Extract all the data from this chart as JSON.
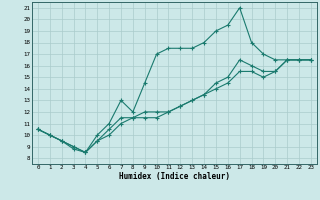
{
  "xlabel": "Humidex (Indice chaleur)",
  "bg_color": "#cce8e8",
  "grid_color": "#aacccc",
  "line_color": "#1a7a6e",
  "xlim": [
    -0.5,
    23.5
  ],
  "ylim": [
    7.5,
    21.5
  ],
  "xticks": [
    0,
    1,
    2,
    3,
    4,
    5,
    6,
    7,
    8,
    9,
    10,
    11,
    12,
    13,
    14,
    15,
    16,
    17,
    18,
    19,
    20,
    21,
    22,
    23
  ],
  "yticks": [
    8,
    9,
    10,
    11,
    12,
    13,
    14,
    15,
    16,
    17,
    18,
    19,
    20,
    21
  ],
  "line1_x": [
    0,
    1,
    2,
    3,
    4,
    5,
    6,
    7,
    8,
    9,
    10,
    11,
    12,
    13,
    14,
    15,
    16,
    17,
    18,
    19,
    20,
    21,
    22,
    23
  ],
  "line1_y": [
    10.5,
    10.0,
    9.5,
    9.0,
    8.5,
    10.0,
    11.0,
    13.0,
    12.0,
    14.5,
    17.0,
    17.5,
    17.5,
    17.5,
    18.0,
    19.0,
    19.5,
    21.0,
    18.0,
    17.0,
    16.5,
    16.5,
    16.5,
    16.5
  ],
  "line2_x": [
    0,
    1,
    2,
    3,
    4,
    5,
    6,
    7,
    8,
    9,
    10,
    11,
    12,
    13,
    14,
    15,
    16,
    17,
    18,
    19,
    20,
    21,
    22,
    23
  ],
  "line2_y": [
    10.5,
    10.0,
    9.5,
    9.0,
    8.5,
    9.5,
    10.5,
    11.5,
    11.5,
    11.5,
    11.5,
    12.0,
    12.5,
    13.0,
    13.5,
    14.5,
    15.0,
    16.5,
    16.0,
    15.5,
    15.5,
    16.5,
    16.5,
    16.5
  ],
  "line3_x": [
    0,
    1,
    2,
    3,
    4,
    5,
    6,
    7,
    8,
    9,
    10,
    11,
    12,
    13,
    14,
    15,
    16,
    17,
    18,
    19,
    20,
    21,
    22,
    23
  ],
  "line3_y": [
    10.5,
    10.0,
    9.5,
    8.8,
    8.5,
    9.5,
    10.0,
    11.0,
    11.5,
    12.0,
    12.0,
    12.0,
    12.5,
    13.0,
    13.5,
    14.0,
    14.5,
    15.5,
    15.5,
    15.0,
    15.5,
    16.5,
    16.5,
    16.5
  ]
}
